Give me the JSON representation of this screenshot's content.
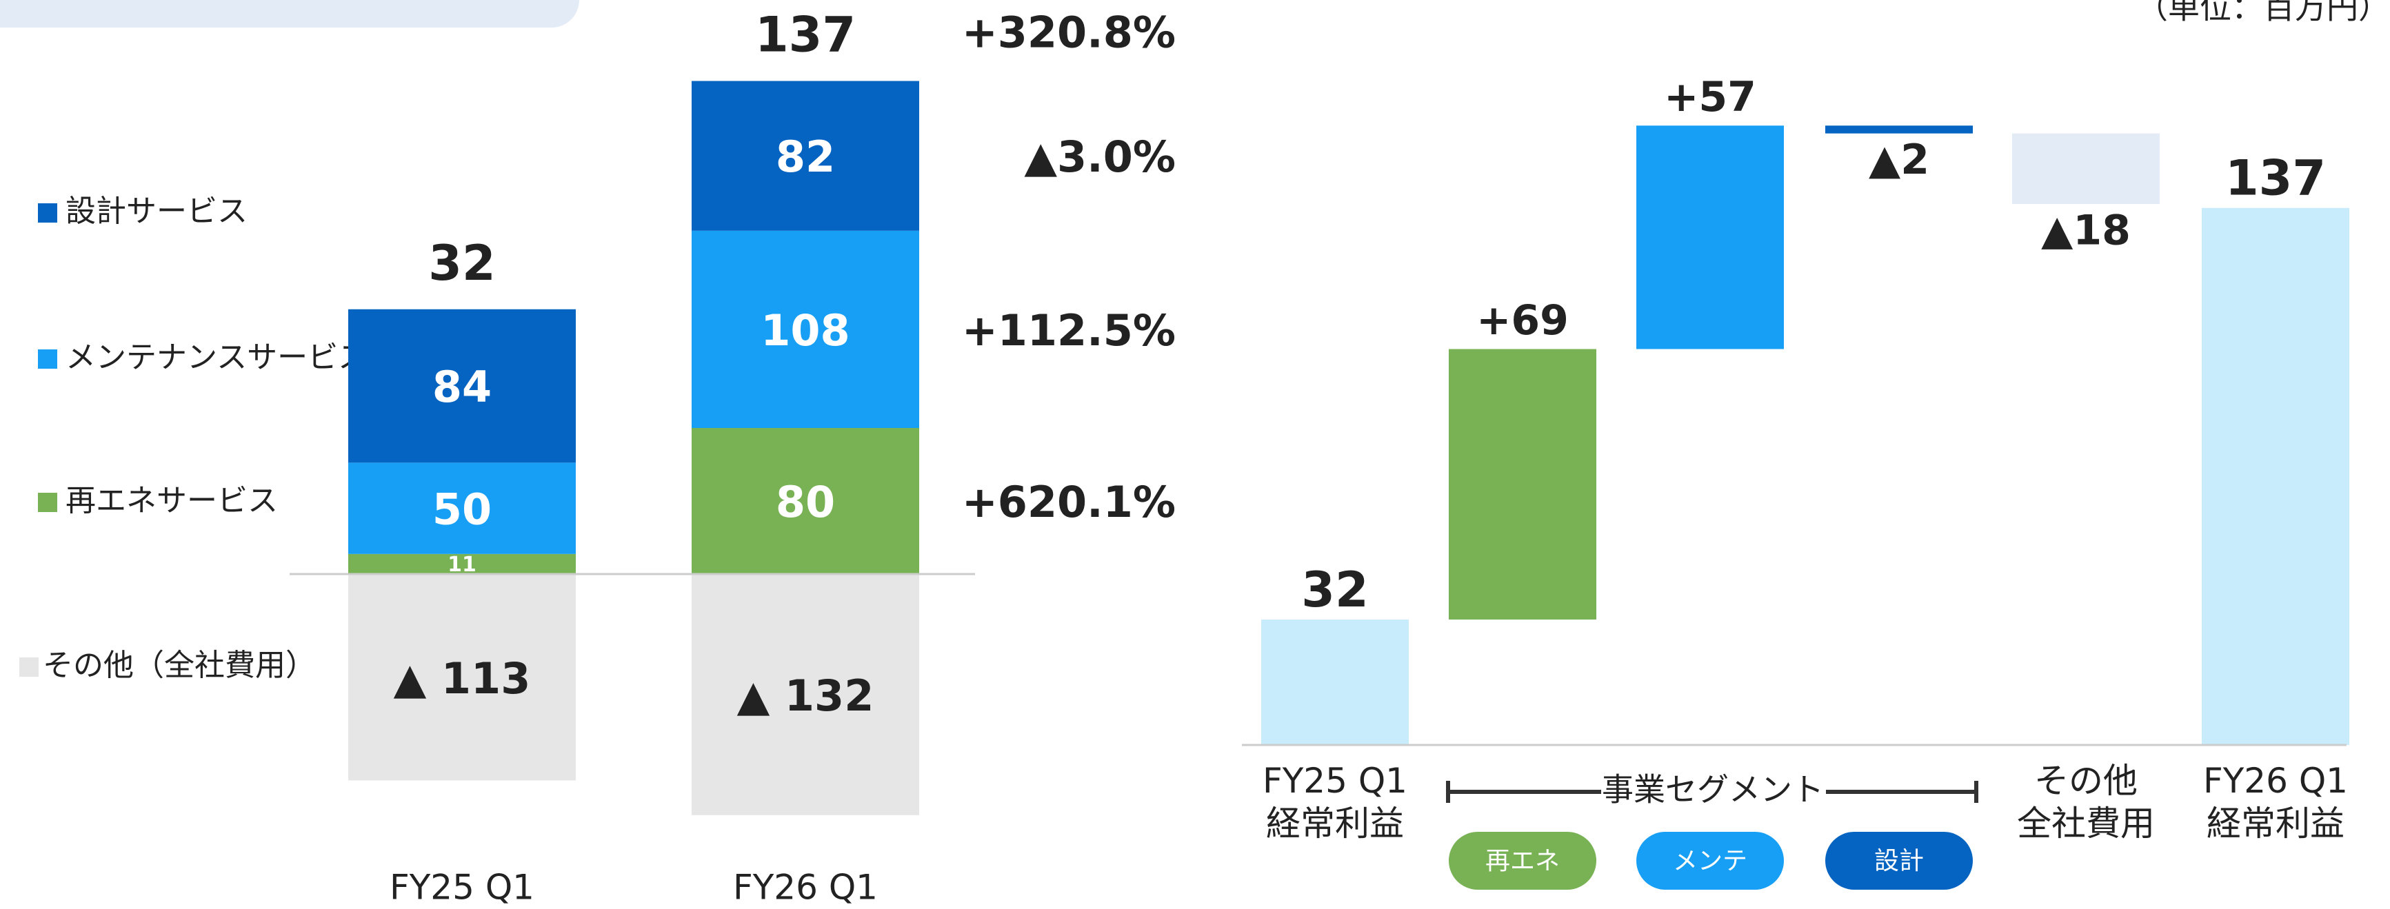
{
  "chart_data": [
    {
      "type": "stacked_bar",
      "categories": [
        "FY25 Q1",
        "FY26 Q1"
      ],
      "series": [
        {
          "name": "設計サービス",
          "color": "#0563c1",
          "values": [
            84,
            82
          ],
          "change_label": "▲3.0%"
        },
        {
          "name": "メンテナンスサービス",
          "color": "#179ff5",
          "values": [
            50,
            108
          ],
          "change_label": "+112.5%"
        },
        {
          "name": "再エネサービス",
          "color": "#79b255",
          "values": [
            11,
            80
          ],
          "change_label": "+620.1%"
        },
        {
          "name": "その他（全社費用）",
          "color": "#e6e6e6",
          "values": [
            -113,
            -132
          ],
          "value_labels": [
            "▲ 113",
            "▲ 132"
          ]
        }
      ],
      "totals": [
        32,
        137
      ],
      "total_change_label": "+320.8%",
      "ylim": [
        -150,
        290
      ]
    },
    {
      "type": "waterfall",
      "unit": "（単位：百万円）",
      "categories": [
        "FY25 Q1\n経常利益",
        "再エネ",
        "メンテ",
        "設計",
        "その他\n全社費用",
        "FY26 Q1\n経常利益"
      ],
      "values": [
        32,
        69,
        57,
        -2,
        -18,
        137
      ],
      "value_labels": [
        "32",
        "+69",
        "+57",
        "▲2",
        "▲18",
        "137"
      ],
      "is_total": [
        true,
        false,
        false,
        false,
        false,
        true
      ],
      "colors": [
        "#c8ecfb",
        "#79b255",
        "#179ff5",
        "#0563c1",
        "#e3ebf6",
        "#c8ecfb"
      ],
      "group_label": "事業セグメント",
      "ylim": [
        0,
        170
      ]
    }
  ]
}
